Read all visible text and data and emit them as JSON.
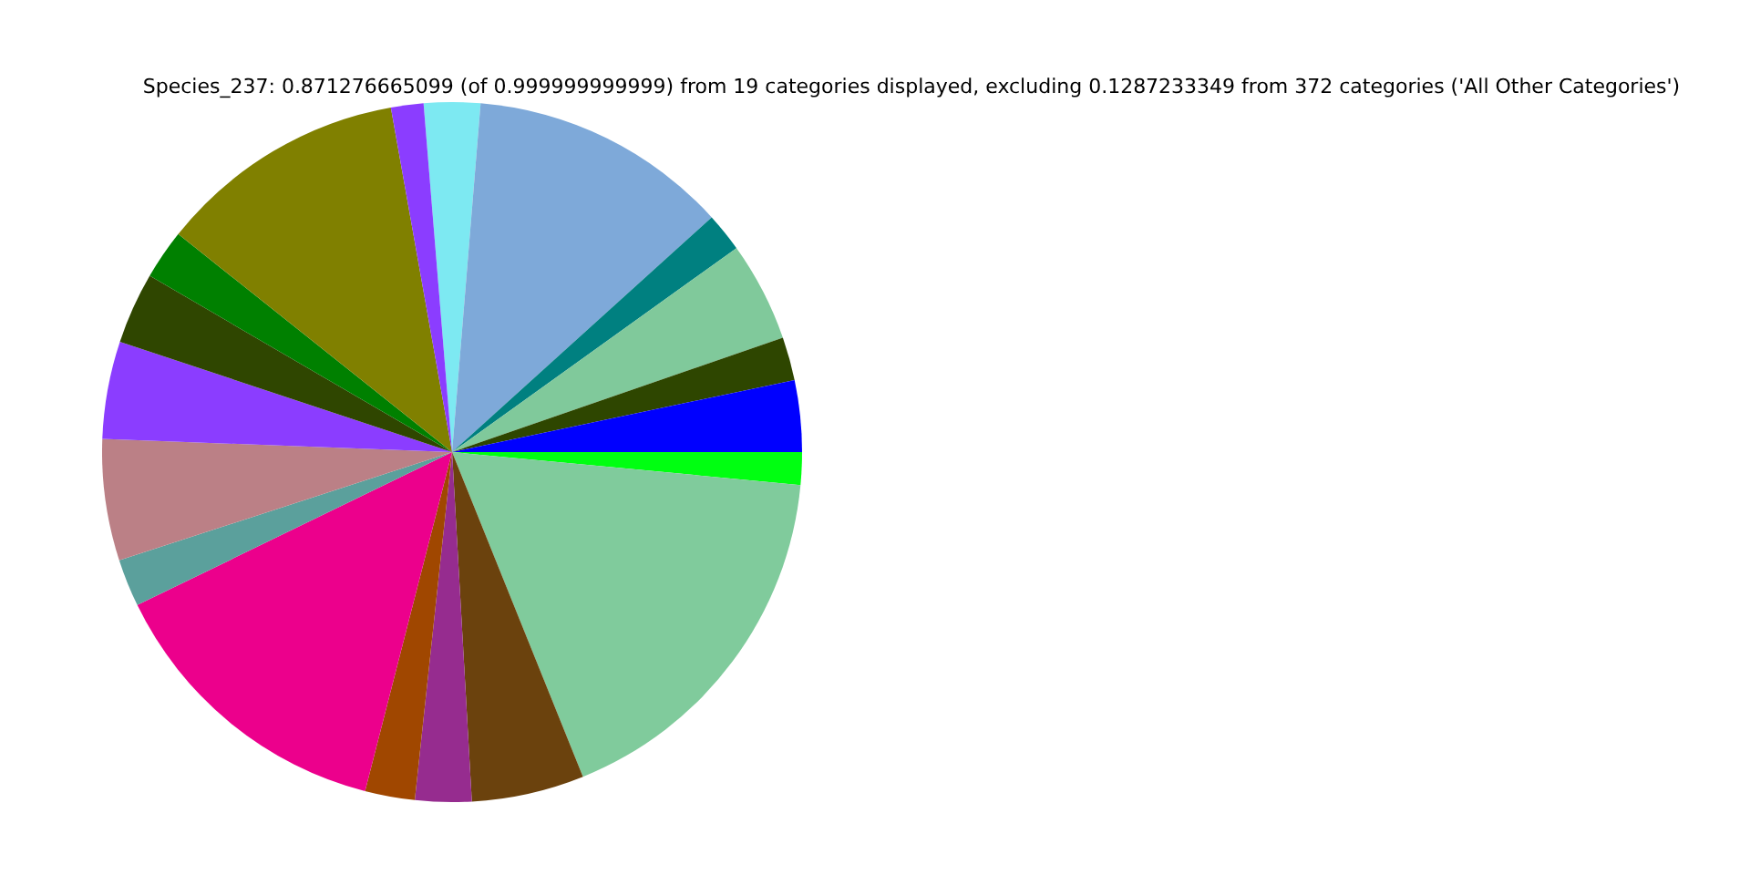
{
  "chart_data": {
    "type": "pie",
    "title": "Species_237: 0.871276665099 (of 0.999999999999) from 19 categories displayed, excluding 0.1287233349 from 372 categories ('All Other Categories')",
    "categories": [
      null,
      null,
      null,
      null,
      null,
      null,
      null,
      null,
      null,
      null,
      null,
      null,
      null,
      null,
      null,
      null,
      null,
      null,
      null
    ],
    "values": [
      2.6,
      12.0,
      1.8,
      4.6,
      2.0,
      3.3,
      1.5,
      17.4,
      5.2,
      2.6,
      2.3,
      13.8,
      2.2,
      5.6,
      4.5,
      3.3,
      2.3,
      11.5,
      1.5
    ],
    "colors": [
      "#7de9f2",
      "#7ea9d9",
      "#008080",
      "#80c99b",
      "#2e4600",
      "#0000ff",
      "#00ff11",
      "#80cb9c",
      "#6b420d",
      "#962c8f",
      "#a04700",
      "#ec008c",
      "#5ba09c",
      "#bb8086",
      "#8b3dff",
      "#2f4600",
      "#008000",
      "#808000",
      "#8b3dff"
    ]
  }
}
